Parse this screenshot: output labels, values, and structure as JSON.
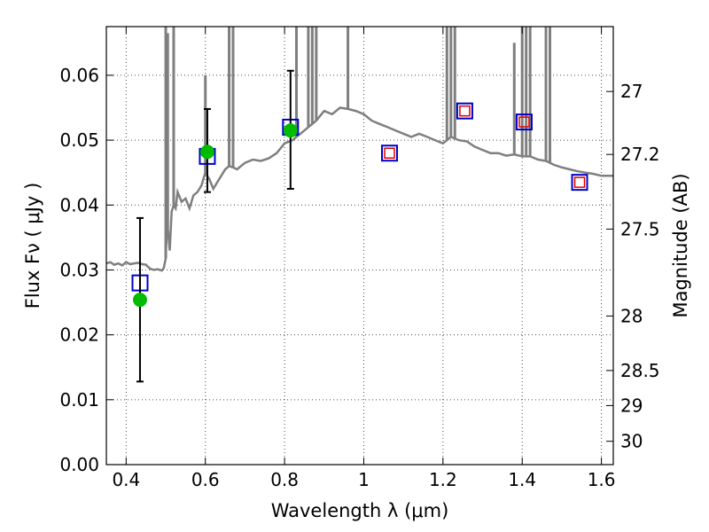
{
  "chart_data": {
    "type": "line",
    "title": "",
    "xlabel": "Wavelength  λ (μm)",
    "ylabel": "Flux  Fν  ( μJy )",
    "y2label": "Magnitude (AB)",
    "xlim": [
      0.35,
      1.63
    ],
    "ylim": [
      0.0,
      0.0675
    ],
    "grid": true,
    "x_ticks": [
      0.4,
      0.6,
      0.8,
      1.0,
      1.2,
      1.4,
      1.6
    ],
    "x_tick_labels": [
      "0.4",
      "0.6",
      "0.8",
      "1",
      "1.2",
      "1.4",
      "1.6"
    ],
    "y_ticks": [
      0.0,
      0.01,
      0.02,
      0.03,
      0.04,
      0.05,
      0.06
    ],
    "y_tick_labels": [
      "0.00",
      "0.01",
      "0.02",
      "0.03",
      "0.04",
      "0.05",
      "0.06"
    ],
    "y2_ticks": [
      {
        "label": "27",
        "flux": 0.0575
      },
      {
        "label": "27.2",
        "flux": 0.0478
      },
      {
        "label": "27.5",
        "flux": 0.0363
      },
      {
        "label": "28",
        "flux": 0.0229
      },
      {
        "label": "28.5",
        "flux": 0.0145
      },
      {
        "label": "29",
        "flux": 0.0091
      },
      {
        "label": "30",
        "flux": 0.0036
      }
    ],
    "series": [
      {
        "name": "model spectrum",
        "style": "line",
        "color": "#7f7f7f",
        "x": [
          0.35,
          0.36,
          0.37,
          0.38,
          0.39,
          0.4,
          0.41,
          0.42,
          0.43,
          0.44,
          0.45,
          0.46,
          0.47,
          0.48,
          0.49,
          0.495,
          0.5,
          0.503,
          0.506,
          0.51,
          0.515,
          0.52,
          0.525,
          0.53,
          0.54,
          0.55,
          0.56,
          0.57,
          0.58,
          0.59,
          0.6,
          0.61,
          0.62,
          0.63,
          0.64,
          0.65,
          0.66,
          0.67,
          0.68,
          0.69,
          0.7,
          0.72,
          0.74,
          0.76,
          0.78,
          0.8,
          0.82,
          0.84,
          0.86,
          0.88,
          0.9,
          0.92,
          0.94,
          0.96,
          0.98,
          1.0,
          1.02,
          1.04,
          1.06,
          1.08,
          1.1,
          1.12,
          1.14,
          1.16,
          1.18,
          1.2,
          1.22,
          1.24,
          1.26,
          1.28,
          1.3,
          1.32,
          1.34,
          1.36,
          1.38,
          1.4,
          1.42,
          1.44,
          1.46,
          1.48,
          1.5,
          1.52,
          1.54,
          1.56,
          1.58,
          1.6,
          1.63
        ],
        "y": [
          0.031,
          0.0312,
          0.0308,
          0.031,
          0.0307,
          0.0312,
          0.0309,
          0.031,
          0.0311,
          0.0309,
          0.0308,
          0.0302,
          0.03,
          0.0301,
          0.0299,
          0.0303,
          0.0318,
          0.037,
          0.036,
          0.033,
          0.039,
          0.04,
          0.0395,
          0.042,
          0.0405,
          0.041,
          0.0395,
          0.0415,
          0.042,
          0.043,
          0.045,
          0.044,
          0.0425,
          0.0435,
          0.0445,
          0.0455,
          0.046,
          0.0458,
          0.0455,
          0.046,
          0.0465,
          0.047,
          0.0468,
          0.0472,
          0.048,
          0.0495,
          0.05,
          0.051,
          0.052,
          0.053,
          0.0545,
          0.054,
          0.055,
          0.0548,
          0.0545,
          0.054,
          0.053,
          0.0525,
          0.052,
          0.0515,
          0.051,
          0.0505,
          0.051,
          0.0505,
          0.05,
          0.0495,
          0.0505,
          0.05,
          0.0498,
          0.049,
          0.0485,
          0.048,
          0.048,
          0.0476,
          0.0478,
          0.0475,
          0.0475,
          0.047,
          0.0468,
          0.0462,
          0.0458,
          0.0455,
          0.0452,
          0.045,
          0.0448,
          0.0445,
          0.0445
        ]
      },
      {
        "name": "emission lines",
        "style": "spikes",
        "color": "#7f7f7f",
        "x": [
          0.5,
          0.505,
          0.52,
          0.6,
          0.66,
          0.67,
          0.83,
          0.86,
          0.87,
          0.88,
          0.96,
          1.21,
          1.22,
          1.23,
          1.38,
          1.4,
          1.41,
          1.42,
          1.46,
          1.47
        ],
        "y": [
          0.0675,
          0.0665,
          0.0675,
          0.06,
          0.0675,
          0.0675,
          0.0675,
          0.0675,
          0.0675,
          0.0675,
          0.0675,
          0.0675,
          0.0675,
          0.0675,
          0.065,
          0.0675,
          0.0675,
          0.0675,
          0.0675,
          0.0675
        ]
      },
      {
        "name": "model photometry",
        "style": "open-square",
        "color": "#0000cc",
        "x": [
          0.435,
          0.605,
          0.815,
          1.065,
          1.255,
          1.405,
          1.545
        ],
        "y": [
          0.028,
          0.0475,
          0.052,
          0.048,
          0.0545,
          0.0528,
          0.0435
        ]
      },
      {
        "name": "synthetic photometry",
        "style": "small-square",
        "color": "#dd0000",
        "x": [
          1.065,
          1.255,
          1.405,
          1.545
        ],
        "y": [
          0.048,
          0.0545,
          0.0528,
          0.0435
        ]
      },
      {
        "name": "observed photometry",
        "style": "filled-circle",
        "color": "#00bb00",
        "x": [
          0.435,
          0.605,
          0.815
        ],
        "y": [
          0.0254,
          0.0482,
          0.0515
        ],
        "yerr_low": [
          0.0128,
          0.042,
          0.0425
        ],
        "yerr_high": [
          0.038,
          0.0548,
          0.0607
        ]
      }
    ]
  }
}
